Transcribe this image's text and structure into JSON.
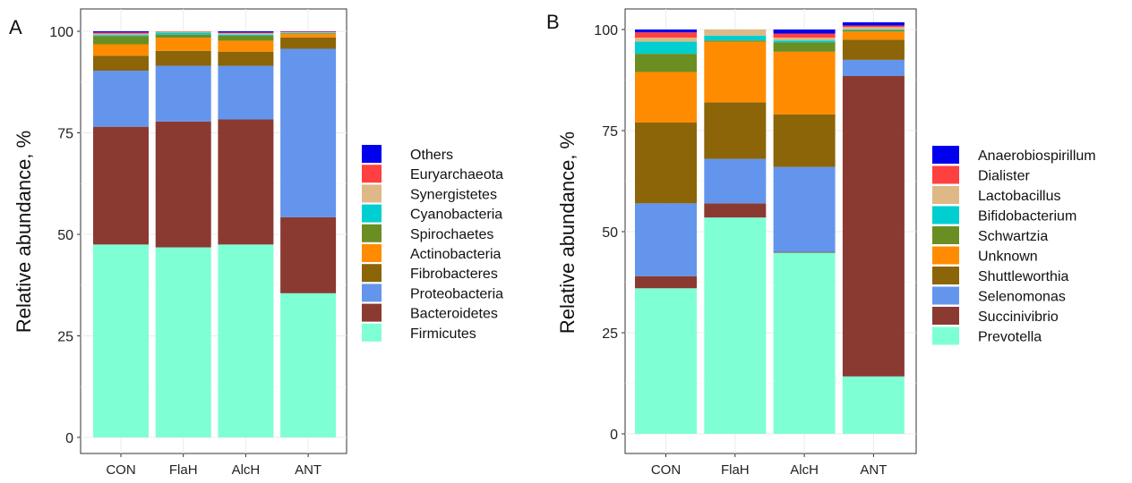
{
  "chart_data": [
    {
      "type": "bar",
      "stacked": true,
      "panel_label": "A",
      "ylabel": "Relative abundance, %",
      "ylim": [
        0,
        100
      ],
      "yticks": [
        0,
        25,
        50,
        75,
        100
      ],
      "categories": [
        "CON",
        "FlaH",
        "AlcH",
        "ANT"
      ],
      "grid": true,
      "legend_position": "right",
      "series": [
        {
          "name": "Firmicutes",
          "color": "#7FFFD4",
          "values": [
            47.5,
            46.8,
            47.5,
            35.5
          ]
        },
        {
          "name": "Bacteroidetes",
          "color": "#8B3A32",
          "values": [
            29.0,
            31.0,
            30.8,
            18.7
          ]
        },
        {
          "name": "Proteobacteria",
          "color": "#6495ED",
          "values": [
            13.8,
            13.7,
            13.2,
            41.5
          ]
        },
        {
          "name": "Fibrobacteres",
          "color": "#8B6508",
          "values": [
            3.7,
            3.7,
            3.5,
            2.8
          ]
        },
        {
          "name": "Actinobacteria",
          "color": "#FF8C00",
          "values": [
            2.8,
            3.2,
            2.7,
            0.8
          ]
        },
        {
          "name": "Spirochaetes",
          "color": "#6B8E23",
          "values": [
            2.0,
            0.8,
            1.2,
            0.2
          ]
        },
        {
          "name": "Cyanobacteria",
          "color": "#00CED1",
          "values": [
            0.3,
            0.5,
            0.3,
            0.1
          ]
        },
        {
          "name": "Synergistetes",
          "color": "#DEB887",
          "values": [
            0.3,
            0.2,
            0.3,
            0.2
          ]
        },
        {
          "name": "Euryarchaeota",
          "color": "#FF4040",
          "values": [
            0.3,
            0.1,
            0.2,
            0.1
          ]
        },
        {
          "name": "Others",
          "color": "#0000EE",
          "values": [
            0.3,
            0.0,
            0.3,
            0.1
          ]
        }
      ]
    },
    {
      "type": "bar",
      "stacked": true,
      "panel_label": "B",
      "ylabel": "Relative abundance, %",
      "ylim": [
        0,
        100
      ],
      "yticks": [
        0,
        25,
        50,
        75,
        100
      ],
      "categories": [
        "CON",
        "FlaH",
        "AlcH",
        "ANT"
      ],
      "grid": true,
      "legend_position": "right",
      "series": [
        {
          "name": "Prevotella",
          "color": "#7FFFD4",
          "values": [
            36.0,
            53.5,
            44.8,
            14.2
          ]
        },
        {
          "name": "Succinivibrio",
          "color": "#8B3A32",
          "values": [
            3.0,
            3.5,
            0.2,
            74.3
          ]
        },
        {
          "name": "Selenomonas",
          "color": "#6495ED",
          "values": [
            18.0,
            11.0,
            21.0,
            4.0
          ]
        },
        {
          "name": "Shuttleworthia",
          "color": "#8B6508",
          "values": [
            20.0,
            14.0,
            13.0,
            5.0
          ]
        },
        {
          "name": "Unknown",
          "color": "#FF8C00",
          "values": [
            12.5,
            15.0,
            15.5,
            2.0
          ]
        },
        {
          "name": "Schwartzia",
          "color": "#6B8E23",
          "values": [
            4.5,
            0.3,
            2.3,
            0.3
          ]
        },
        {
          "name": "Bifidobacterium",
          "color": "#00CED1",
          "values": [
            3.0,
            1.2,
            0.5,
            0.2
          ]
        },
        {
          "name": "Lactobacillus",
          "color": "#DEB887",
          "values": [
            1.0,
            1.5,
            0.7,
            0.6
          ]
        },
        {
          "name": "Dialister",
          "color": "#FF4040",
          "values": [
            1.3,
            0.0,
            1.0,
            0.4
          ]
        },
        {
          "name": "Anaerobiospirillum",
          "color": "#0000EE",
          "values": [
            0.7,
            0.0,
            1.0,
            0.8
          ]
        }
      ]
    }
  ]
}
